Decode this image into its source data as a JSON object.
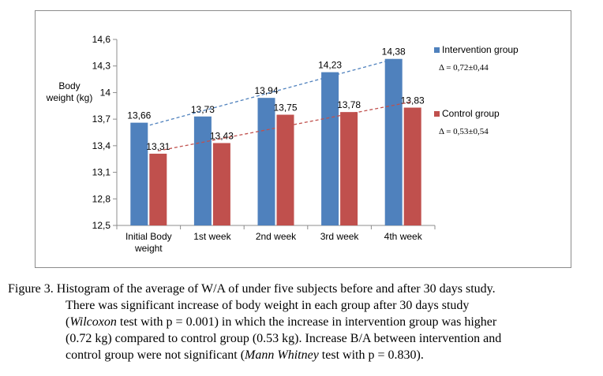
{
  "chart_data": {
    "type": "bar",
    "categories": [
      "Initial Body weight",
      "1st week",
      "2nd week",
      "3rd week",
      "4th week"
    ],
    "category_lines": [
      [
        "Initial Body",
        "weight"
      ],
      [
        "1st week"
      ],
      [
        "2nd week"
      ],
      [
        "3rd week"
      ],
      [
        "4th week"
      ]
    ],
    "series": [
      {
        "name": "Intervention group",
        "values": [
          13.66,
          13.73,
          13.94,
          14.23,
          14.38
        ],
        "labels": [
          "13,66",
          "13,73",
          "13,94",
          "14,23",
          "14,38"
        ],
        "color": "#4f81bd",
        "delta": "Δ = 0,72±0,44"
      },
      {
        "name": "Control group",
        "values": [
          13.31,
          13.43,
          13.75,
          13.78,
          13.83
        ],
        "labels": [
          "13,31",
          "13,43",
          "13,75",
          "13,78",
          "13,83"
        ],
        "color": "#c0504d",
        "delta": "Δ = 0,53±0,54"
      }
    ],
    "ylabel_lines": [
      "Body",
      "weight (kg)"
    ],
    "ylim": [
      12.5,
      14.6
    ],
    "yticks": [
      12.5,
      12.8,
      13.1,
      13.4,
      13.7,
      14.0,
      14.3,
      14.6
    ],
    "ytick_labels": [
      "12,5",
      "12,8",
      "13,1",
      "13,4",
      "13,7",
      "14",
      "14,3",
      "14,6"
    ],
    "trendlines": true,
    "grid": false,
    "legend_position": "right"
  },
  "caption": {
    "lines": [
      [
        {
          "t": "Figure 3. Histogram of the average of W/A of under five subjects before and after 30 days study."
        }
      ],
      [
        {
          "t": "There was significant increase of body weight in each group after 30 days study"
        }
      ],
      [
        {
          "t": "("
        },
        {
          "t": "Wilcoxon",
          "i": true
        },
        {
          "t": " test with p = 0.001) in which the increase in intervention group was higher"
        }
      ],
      [
        {
          "t": "(0.72 kg) compared to control group (0.53 kg). Increase B/A between intervention and"
        }
      ],
      [
        {
          "t": "control group were not significant ("
        },
        {
          "t": "Mann Whitney",
          "i": true
        },
        {
          "t": " test with p = 0.830)."
        }
      ]
    ]
  }
}
